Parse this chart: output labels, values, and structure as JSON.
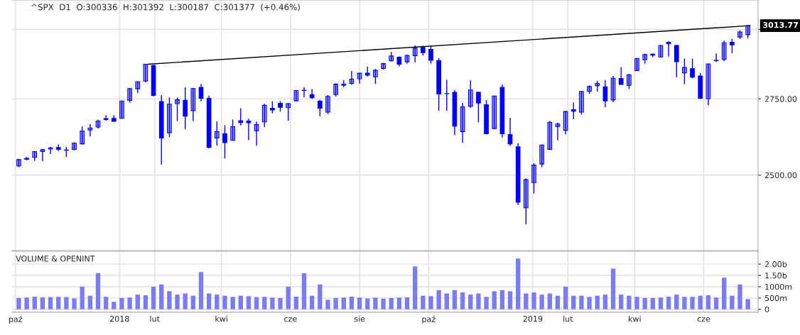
{
  "chart_data": [
    {
      "type": "candlestick",
      "title": "^SPX  D1  O:300336  H:301392  L:300187  C:301377  (+0.46%)",
      "log": true,
      "grid": true,
      "tick_labels": "y",
      "color": "#0000ff",
      "xlim": [
        "2017-09-28",
        "2019-07-19"
      ],
      "ylim": [
        2275,
        3112
      ],
      "xticks": [
        {
          "value": "2017-10-01",
          "label": null
        },
        {
          "value": "2018-01-01",
          "label": null
        },
        {
          "value": "2018-02-01",
          "label": null
        },
        {
          "value": "2018-04-01",
          "label": null
        },
        {
          "value": "2018-06-01",
          "label": null
        },
        {
          "value": "2018-08-01",
          "label": null
        },
        {
          "value": "2018-10-01",
          "label": null
        },
        {
          "value": "2019-01-01",
          "label": null
        },
        {
          "value": "2019-02-01",
          "label": null
        },
        {
          "value": "2019-04-01",
          "label": null
        },
        {
          "value": "2019-06-01",
          "label": null
        }
      ],
      "yticks": [
        {
          "value": 2500,
          "label": "2500.00"
        },
        {
          "value": 2750,
          "label": "2750.00"
        },
        {
          "value": 3000,
          "label": null
        }
      ],
      "annotations": [
        {
          "text": "3013.77",
          "x": "2019-07-12",
          "y": 3013.77
        }
      ],
      "x": [
        "2017-10-04",
        "2017-10-11",
        "2017-10-18",
        "2017-10-25",
        "2017-11-01",
        "2017-11-08",
        "2017-11-15",
        "2017-11-22",
        "2017-11-29",
        "2017-12-06",
        "2017-12-13",
        "2017-12-20",
        "2017-12-27",
        "2018-01-03",
        "2018-01-10",
        "2018-01-17",
        "2018-01-24",
        "2018-01-31",
        "2018-02-07",
        "2018-02-14",
        "2018-02-21",
        "2018-02-28",
        "2018-03-07",
        "2018-03-14",
        "2018-03-21",
        "2018-03-28",
        "2018-04-04",
        "2018-04-11",
        "2018-04-18",
        "2018-04-25",
        "2018-05-02",
        "2018-05-09",
        "2018-05-16",
        "2018-05-23",
        "2018-05-30",
        "2018-06-06",
        "2018-06-13",
        "2018-06-20",
        "2018-06-27",
        "2018-07-04",
        "2018-07-11",
        "2018-07-18",
        "2018-07-25",
        "2018-08-01",
        "2018-08-08",
        "2018-08-15",
        "2018-08-22",
        "2018-08-29",
        "2018-09-05",
        "2018-09-12",
        "2018-09-19",
        "2018-09-26",
        "2018-10-03",
        "2018-10-10",
        "2018-10-17",
        "2018-10-24",
        "2018-10-31",
        "2018-11-07",
        "2018-11-14",
        "2018-11-21",
        "2018-11-28",
        "2018-12-05",
        "2018-12-12",
        "2018-12-19",
        "2018-12-26",
        "2019-01-02",
        "2019-01-09",
        "2019-01-16",
        "2019-01-23",
        "2019-01-30",
        "2019-02-06",
        "2019-02-13",
        "2019-02-20",
        "2019-02-27",
        "2019-03-06",
        "2019-03-13",
        "2019-03-20",
        "2019-03-27",
        "2019-04-03",
        "2019-04-10",
        "2019-04-17",
        "2019-04-24",
        "2019-05-01",
        "2019-05-08",
        "2019-05-15",
        "2019-05-22",
        "2019-05-29",
        "2019-06-05",
        "2019-06-12",
        "2019-06-19",
        "2019-06-26",
        "2019-07-03",
        "2019-07-10"
      ],
      "ohlc": [
        [
          2529,
          2552,
          2525,
          2549
        ],
        [
          2550,
          2557,
          2547,
          2553
        ],
        [
          2556,
          2576,
          2545,
          2575
        ],
        [
          2575,
          2582,
          2544,
          2581
        ],
        [
          2583,
          2590,
          2567,
          2587
        ],
        [
          2588,
          2598,
          2576,
          2582
        ],
        [
          2580,
          2590,
          2557,
          2579
        ],
        [
          2582,
          2605,
          2579,
          2602
        ],
        [
          2600,
          2657,
          2597,
          2642
        ],
        [
          2645,
          2665,
          2624,
          2652
        ],
        [
          2655,
          2680,
          2650,
          2675
        ],
        [
          2680,
          2695,
          2676,
          2683
        ],
        [
          2684,
          2695,
          2673,
          2674
        ],
        [
          2684,
          2743,
          2683,
          2743
        ],
        [
          2745,
          2787,
          2737,
          2786
        ],
        [
          2785,
          2810,
          2770,
          2810
        ],
        [
          2812,
          2873,
          2808,
          2872
        ],
        [
          2867,
          2870,
          2759,
          2762
        ],
        [
          2741,
          2763,
          2533,
          2619
        ],
        [
          2636,
          2755,
          2622,
          2732
        ],
        [
          2734,
          2754,
          2675,
          2747
        ],
        [
          2745,
          2790,
          2648,
          2691
        ],
        [
          2710,
          2787,
          2675,
          2786
        ],
        [
          2790,
          2802,
          2742,
          2752
        ],
        [
          2752,
          2761,
          2585,
          2588
        ],
        [
          2619,
          2674,
          2594,
          2640
        ],
        [
          2633,
          2661,
          2553,
          2604
        ],
        [
          2611,
          2680,
          2610,
          2656
        ],
        [
          2676,
          2718,
          2660,
          2670
        ],
        [
          2675,
          2683,
          2612,
          2669
        ],
        [
          2643,
          2673,
          2594,
          2663
        ],
        [
          2672,
          2733,
          2655,
          2728
        ],
        [
          2718,
          2742,
          2701,
          2712
        ],
        [
          2735,
          2742,
          2707,
          2721
        ],
        [
          2720,
          2736,
          2676,
          2734
        ],
        [
          2743,
          2779,
          2743,
          2779
        ],
        [
          2780,
          2790,
          2755,
          2779
        ],
        [
          2765,
          2784,
          2750,
          2754
        ],
        [
          2742,
          2747,
          2691,
          2718
        ],
        [
          2705,
          2763,
          2698,
          2759
        ],
        [
          2765,
          2804,
          2758,
          2801
        ],
        [
          2797,
          2816,
          2790,
          2801
        ],
        [
          2804,
          2848,
          2799,
          2819
        ],
        [
          2820,
          2841,
          2803,
          2840
        ],
        [
          2840,
          2863,
          2828,
          2833
        ],
        [
          2827,
          2855,
          2802,
          2850
        ],
        [
          2857,
          2877,
          2853,
          2874
        ],
        [
          2884,
          2916,
          2882,
          2902
        ],
        [
          2897,
          2900,
          2864,
          2872
        ],
        [
          2880,
          2906,
          2874,
          2904
        ],
        [
          2903,
          2940,
          2878,
          2930
        ],
        [
          2933,
          2940,
          2903,
          2914
        ],
        [
          2926,
          2940,
          2874,
          2886
        ],
        [
          2885,
          2894,
          2710,
          2767
        ],
        [
          2768,
          2817,
          2710,
          2768
        ],
        [
          2773,
          2781,
          2628,
          2658
        ],
        [
          2640,
          2736,
          2603,
          2723
        ],
        [
          2724,
          2815,
          2720,
          2781
        ],
        [
          2773,
          2775,
          2671,
          2736
        ],
        [
          2730,
          2746,
          2631,
          2633
        ],
        [
          2650,
          2760,
          2649,
          2760
        ],
        [
          2790,
          2800,
          2621,
          2633
        ],
        [
          2630,
          2686,
          2593,
          2600
        ],
        [
          2590,
          2602,
          2408,
          2417
        ],
        [
          2400,
          2490,
          2351,
          2486
        ],
        [
          2477,
          2538,
          2443,
          2532
        ],
        [
          2535,
          2597,
          2525,
          2596
        ],
        [
          2582,
          2675,
          2580,
          2671
        ],
        [
          2657,
          2670,
          2612,
          2665
        ],
        [
          2644,
          2709,
          2631,
          2707
        ],
        [
          2713,
          2738,
          2681,
          2708
        ],
        [
          2705,
          2777,
          2697,
          2776
        ],
        [
          2776,
          2797,
          2767,
          2793
        ],
        [
          2796,
          2813,
          2775,
          2804
        ],
        [
          2792,
          2816,
          2722,
          2743
        ],
        [
          2747,
          2830,
          2739,
          2822
        ],
        [
          2821,
          2861,
          2800,
          2800
        ],
        [
          2797,
          2838,
          2785,
          2834
        ],
        [
          2849,
          2893,
          2848,
          2893
        ],
        [
          2888,
          2910,
          2874,
          2907
        ],
        [
          2908,
          2911,
          2897,
          2905
        ],
        [
          2898,
          2940,
          2898,
          2940
        ],
        [
          2952,
          2955,
          2900,
          2946
        ],
        [
          2940,
          2942,
          2825,
          2881
        ],
        [
          2841,
          2892,
          2801,
          2860
        ],
        [
          2856,
          2892,
          2822,
          2826
        ],
        [
          2830,
          2840,
          2750,
          2752
        ],
        [
          2751,
          2873,
          2728,
          2873
        ],
        [
          2885,
          2911,
          2880,
          2886
        ],
        [
          2889,
          2958,
          2883,
          2950
        ],
        [
          2952,
          2964,
          2912,
          2942
        ],
        [
          2971,
          2996,
          2964,
          2990
        ],
        [
          2980,
          3014,
          2966,
          3014
        ]
      ],
      "series": [
        {
          "type": "line",
          "color": "#000000",
          "x": [
            "2018-01-26",
            "2019-07-12"
          ],
          "values": [
            2872,
            3013.77
          ]
        }
      ]
    },
    {
      "type": "bar",
      "title": "VOLUME & OPENINT",
      "grid": true,
      "color": "#7b7bf5",
      "xlim": [
        "2017-09-28",
        "2019-07-19"
      ],
      "ylim": [
        -130000000.0,
        2570000000.0
      ],
      "xticks": [
        {
          "value": "2017-10-01",
          "label": "paź"
        },
        {
          "value": "2018-01-01",
          "label": "2018"
        },
        {
          "value": "2018-02-01",
          "label": "lut"
        },
        {
          "value": "2018-04-01",
          "label": "kwi"
        },
        {
          "value": "2018-06-01",
          "label": "cze"
        },
        {
          "value": "2018-08-01",
          "label": "sie"
        },
        {
          "value": "2018-10-01",
          "label": "paź"
        },
        {
          "value": "2019-01-01",
          "label": "2019"
        },
        {
          "value": "2019-02-01",
          "label": "lut"
        },
        {
          "value": "2019-04-01",
          "label": "kwi"
        },
        {
          "value": "2019-06-01",
          "label": "cze"
        }
      ],
      "yticks": [
        0,
        {
          "value": 500000000.0,
          "label": "500m"
        },
        {
          "value": 1000000000.0,
          "label": "1000m"
        },
        {
          "value": 1500000000.0,
          "label": "1.50b"
        },
        {
          "value": 2000000000.0,
          "label": "2.00b"
        }
      ],
      "x": [
        "2017-10-04",
        "2017-10-11",
        "2017-10-18",
        "2017-10-25",
        "2017-11-01",
        "2017-11-08",
        "2017-11-15",
        "2017-11-22",
        "2017-11-29",
        "2017-12-06",
        "2017-12-13",
        "2017-12-20",
        "2017-12-27",
        "2018-01-03",
        "2018-01-10",
        "2018-01-17",
        "2018-01-24",
        "2018-01-31",
        "2018-02-07",
        "2018-02-14",
        "2018-02-21",
        "2018-02-28",
        "2018-03-07",
        "2018-03-14",
        "2018-03-21",
        "2018-03-28",
        "2018-04-04",
        "2018-04-11",
        "2018-04-18",
        "2018-04-25",
        "2018-05-02",
        "2018-05-09",
        "2018-05-16",
        "2018-05-23",
        "2018-05-30",
        "2018-06-06",
        "2018-06-13",
        "2018-06-20",
        "2018-06-27",
        "2018-07-04",
        "2018-07-11",
        "2018-07-18",
        "2018-07-25",
        "2018-08-01",
        "2018-08-08",
        "2018-08-15",
        "2018-08-22",
        "2018-08-29",
        "2018-09-05",
        "2018-09-12",
        "2018-09-19",
        "2018-09-26",
        "2018-10-03",
        "2018-10-10",
        "2018-10-17",
        "2018-10-24",
        "2018-10-31",
        "2018-11-07",
        "2018-11-14",
        "2018-11-21",
        "2018-11-28",
        "2018-12-05",
        "2018-12-12",
        "2018-12-19",
        "2018-12-26",
        "2019-01-02",
        "2019-01-09",
        "2019-01-16",
        "2019-01-23",
        "2019-01-30",
        "2019-02-06",
        "2019-02-13",
        "2019-02-20",
        "2019-02-27",
        "2019-03-06",
        "2019-03-13",
        "2019-03-20",
        "2019-03-27",
        "2019-04-03",
        "2019-04-10",
        "2019-04-17",
        "2019-04-24",
        "2019-05-01",
        "2019-05-08",
        "2019-05-15",
        "2019-05-22",
        "2019-05-29",
        "2019-06-05",
        "2019-06-12",
        "2019-06-19",
        "2019-06-26",
        "2019-07-03",
        "2019-07-10"
      ],
      "values": [
        500000000.0,
        520000000.0,
        560000000.0,
        530000000.0,
        540000000.0,
        550000000.0,
        540000000.0,
        480000000.0,
        1000000000.0,
        600000000.0,
        1600000000.0,
        550000000.0,
        330000000.0,
        500000000.0,
        520000000.0,
        650000000.0,
        620000000.0,
        1000000000.0,
        1100000000.0,
        800000000.0,
        650000000.0,
        700000000.0,
        600000000.0,
        1650000000.0,
        700000000.0,
        650000000.0,
        600000000.0,
        550000000.0,
        600000000.0,
        580000000.0,
        540000000.0,
        550000000.0,
        520000000.0,
        500000000.0,
        1000000000.0,
        560000000.0,
        1600000000.0,
        600000000.0,
        1100000000.0,
        420000000.0,
        500000000.0,
        520000000.0,
        560000000.0,
        520000000.0,
        480000000.0,
        520000000.0,
        470000000.0,
        500000000.0,
        520000000.0,
        530000000.0,
        1900000000.0,
        600000000.0,
        580000000.0,
        850000000.0,
        700000000.0,
        850000000.0,
        750000000.0,
        650000000.0,
        700000000.0,
        550000000.0,
        800000000.0,
        850000000.0,
        800000000.0,
        2250000000.0,
        700000000.0,
        750000000.0,
        650000000.0,
        700000000.0,
        600000000.0,
        1000000000.0,
        600000000.0,
        600000000.0,
        550000000.0,
        600000000.0,
        650000000.0,
        1800000000.0,
        650000000.0,
        600000000.0,
        550000000.0,
        500000000.0,
        500000000.0,
        520000000.0,
        560000000.0,
        650000000.0,
        550000000.0,
        550000000.0,
        600000000.0,
        620000000.0,
        520000000.0,
        1400000000.0,
        600000000.0,
        1100000000.0,
        450000000.0
      ]
    }
  ]
}
